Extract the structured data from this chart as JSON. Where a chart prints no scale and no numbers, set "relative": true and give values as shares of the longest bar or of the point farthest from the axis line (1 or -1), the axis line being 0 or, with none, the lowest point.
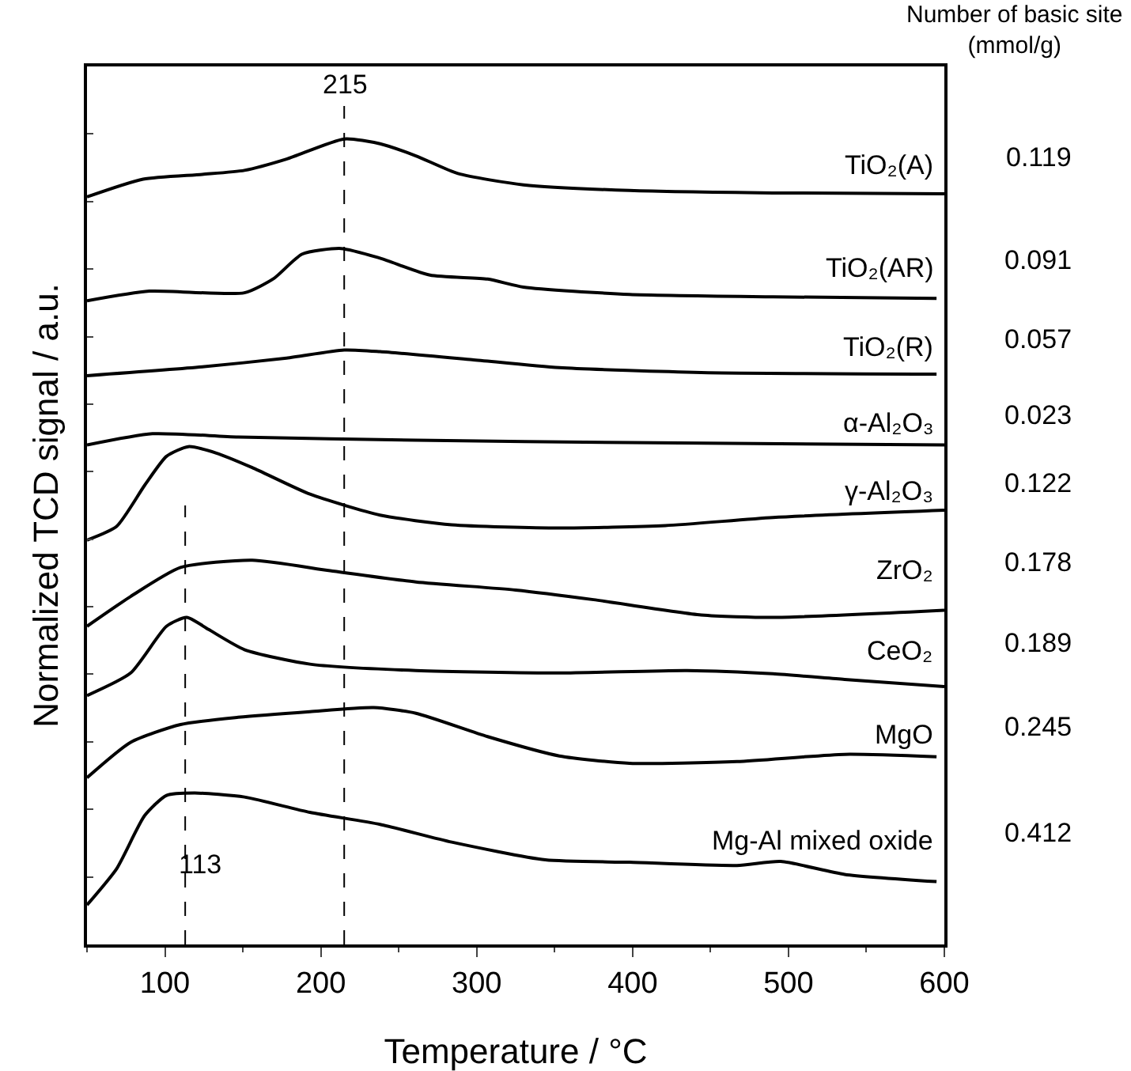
{
  "chart_data": {
    "type": "line",
    "relative": true,
    "xlabel": "Temperature / °C",
    "ylabel": "Normalized TCD signal / a.u.",
    "xlim": [
      50,
      600
    ],
    "xticks": [
      100,
      200,
      300,
      400,
      500,
      600
    ],
    "grid": false,
    "legend": false,
    "marker": "none",
    "line_style": "solid",
    "series": [
      {
        "name": "TiO₂(A)",
        "color": "#000000",
        "x": [
          50,
          86,
          124,
          151,
          178,
          215,
          238,
          261,
          288,
          330,
          398,
          490,
          600
        ],
        "values": [
          0.928,
          0.95,
          0.956,
          0.961,
          0.975,
          1.0,
          0.994,
          0.979,
          0.957,
          0.943,
          0.936,
          0.933,
          0.932
        ]
      },
      {
        "name": "TiO₂(AR)",
        "color": "#000000",
        "x": [
          50,
          90,
          151,
          170,
          188,
          213,
          238,
          270,
          307,
          330,
          398,
          490,
          595
        ],
        "values": [
          0.799,
          0.811,
          0.809,
          0.827,
          0.857,
          0.864,
          0.852,
          0.831,
          0.826,
          0.816,
          0.807,
          0.804,
          0.802
        ]
      },
      {
        "name": "TiO₂(R)",
        "color": "#000000",
        "x": [
          50,
          124,
          178,
          215,
          238,
          297,
          353,
          444,
          595
        ],
        "values": [
          0.706,
          0.717,
          0.728,
          0.738,
          0.736,
          0.726,
          0.716,
          0.71,
          0.708
        ]
      },
      {
        "name": "α-Al₂O₃",
        "color": "#000000",
        "x": [
          50,
          92,
          147,
          261,
          398,
          600
        ],
        "values": [
          0.62,
          0.634,
          0.63,
          0.626,
          0.623,
          0.62
        ]
      },
      {
        "name": "γ-Al₂O₃",
        "color": "#000000",
        "x": [
          50,
          69,
          87,
          101,
          115,
          133,
          156,
          193,
          238,
          284,
          353,
          421,
          490,
          600
        ],
        "values": [
          0.502,
          0.519,
          0.57,
          0.606,
          0.618,
          0.61,
          0.592,
          0.559,
          0.533,
          0.521,
          0.517,
          0.52,
          0.53,
          0.539
        ]
      },
      {
        "name": "ZrO₂",
        "color": "#000000",
        "x": [
          50,
          78,
          110,
          156,
          206,
          261,
          325,
          375,
          444,
          490,
          600
        ],
        "values": [
          0.395,
          0.432,
          0.468,
          0.477,
          0.464,
          0.45,
          0.44,
          0.428,
          0.409,
          0.406,
          0.415
        ]
      },
      {
        "name": "CeO₂",
        "color": "#000000",
        "x": [
          50,
          78,
          101,
          114,
          128,
          151,
          193,
          261,
          353,
          435,
          490,
          536,
          600
        ],
        "values": [
          0.309,
          0.337,
          0.395,
          0.406,
          0.391,
          0.366,
          0.348,
          0.34,
          0.337,
          0.34,
          0.336,
          0.329,
          0.32
        ]
      },
      {
        "name": "MgO",
        "color": "#000000",
        "x": [
          50,
          78,
          110,
          147,
          193,
          234,
          261,
          307,
          353,
          398,
          467,
          536,
          595
        ],
        "values": [
          0.207,
          0.251,
          0.273,
          0.282,
          0.289,
          0.294,
          0.287,
          0.258,
          0.234,
          0.225,
          0.227,
          0.236,
          0.233
        ]
      },
      {
        "name": "Mg-Al mixed oxide",
        "color": "#000000",
        "x": [
          50,
          69,
          87,
          101,
          119,
          151,
          193,
          238,
          284,
          344,
          398,
          467,
          495,
          536,
          595
        ],
        "values": [
          0.049,
          0.094,
          0.16,
          0.185,
          0.188,
          0.183,
          0.164,
          0.149,
          0.127,
          0.105,
          0.102,
          0.098,
          0.103,
          0.087,
          0.078
        ]
      }
    ],
    "ref_lines": [
      {
        "axis": "x",
        "value": 215,
        "label": "215",
        "line_style": "dashed",
        "color": "#000000"
      },
      {
        "axis": "x",
        "value": 113,
        "label": "113",
        "line_style": "dashed",
        "color": "#000000"
      }
    ],
    "annotations": [
      "Number of basic site\n(mmol/g)",
      "0.119",
      "0.091",
      "0.057",
      "0.023",
      "0.122",
      "0.178",
      "0.189",
      "0.245",
      "0.412"
    ]
  }
}
